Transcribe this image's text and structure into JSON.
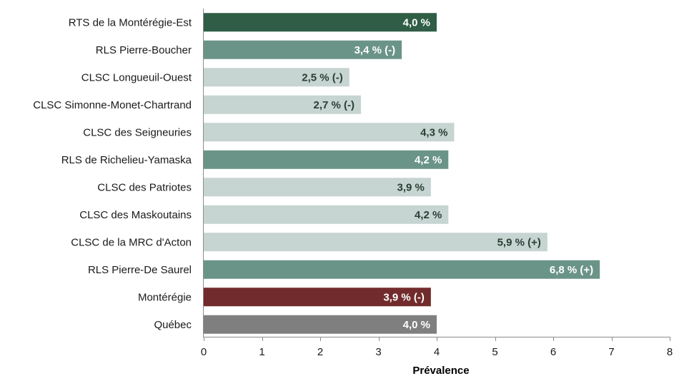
{
  "chart_data": {
    "type": "bar",
    "orientation": "horizontal",
    "title": "",
    "xlabel": "Prévalence",
    "ylabel": "",
    "xlim": [
      0,
      8
    ],
    "xticks": [
      "0",
      "1",
      "2",
      "3",
      "4",
      "5",
      "6",
      "7",
      "8"
    ],
    "grid": false,
    "categories": [
      "RTS de la Montérégie-Est",
      "RLS Pierre-Boucher",
      "CLSC Longueuil-Ouest",
      "CLSC Simonne-Monet-Chartrand",
      "CLSC des Seigneuries",
      "RLS de Richelieu-Yamaska",
      "CLSC des Patriotes",
      "CLSC des Maskoutains",
      "CLSC de la MRC d'Acton",
      "RLS Pierre-De Saurel",
      "Montérégie",
      "Québec"
    ],
    "values": [
      4.0,
      3.4,
      2.5,
      2.7,
      4.3,
      4.2,
      3.9,
      4.2,
      5.9,
      6.8,
      3.9,
      4.0
    ],
    "data_labels": [
      "4,0 %",
      "3,4 % (-)",
      "2,5 % (-)",
      "2,7 % (-)",
      "4,3 %",
      "4,2 %",
      "3,9 %",
      "4,2 %",
      "5,9 % (+)",
      "6,8 % (+)",
      "3,9 % (-)",
      "4,0 %"
    ],
    "bar_colors": [
      "#2f5d46",
      "#6b9488",
      "#c6d4d2",
      "#c6d4d2",
      "#c6d4d2",
      "#6b9488",
      "#c6d4d2",
      "#c6d4d2",
      "#c6d4d2",
      "#6b9488",
      "#722b2c",
      "#7f7f7f"
    ],
    "label_colors": [
      "#ffffff",
      "#ffffff",
      "#2b3f33",
      "#2b3f33",
      "#2b3f33",
      "#ffffff",
      "#2b3f33",
      "#2b3f33",
      "#2b3f33",
      "#ffffff",
      "#ffffff",
      "#ffffff"
    ]
  }
}
